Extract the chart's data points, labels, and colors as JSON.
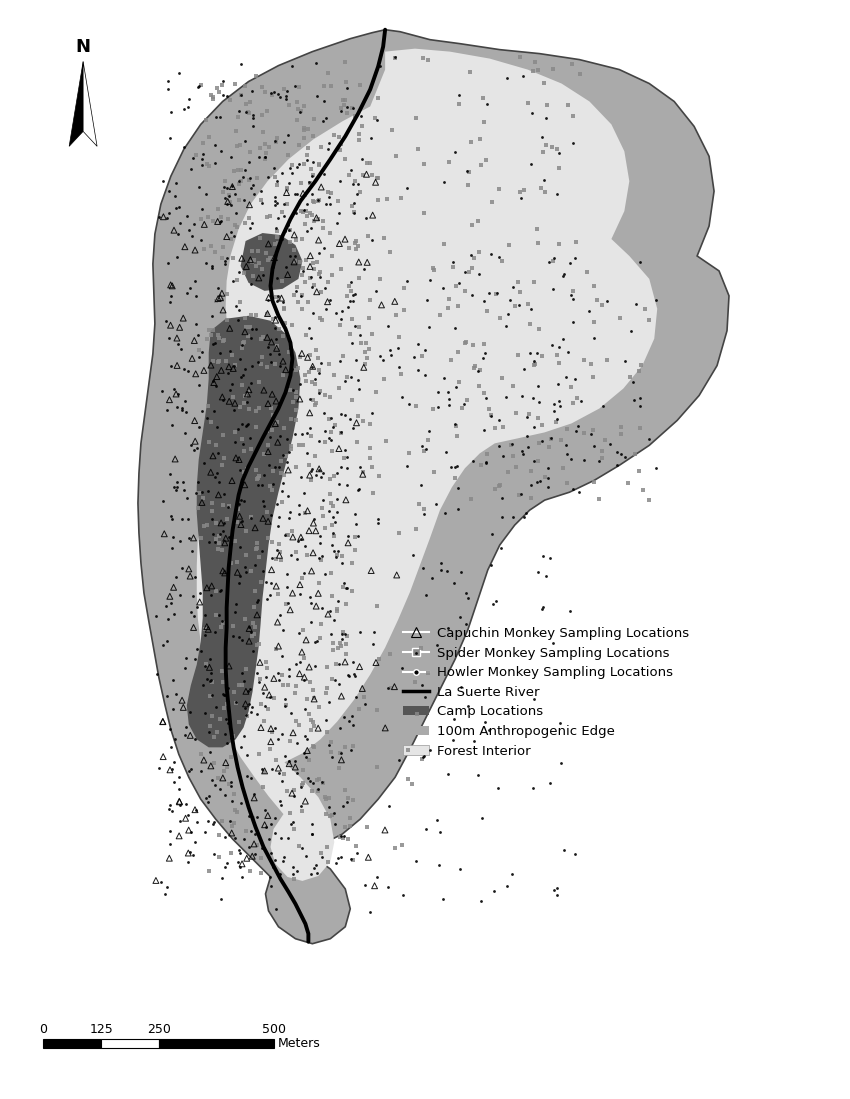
{
  "background_color": "#ffffff",
  "outer_region_color": "#aaaaaa",
  "forest_interior_color": "#e5e5e5",
  "camp_color": "#555555",
  "river_color": "#000000",
  "river_linewidth": 2.8,
  "spider_color": "#888888",
  "legend_labels": [
    "Capuchin Monkey Sampling Locations",
    "Spider Monkey Sampling Locations",
    "Howler Monkey Sampling Locations",
    "La Suerte River",
    "Camp Locations",
    "100m Anthropogenic Edge",
    "Forest Interior"
  ],
  "scale_bar_label": "Meters",
  "north_label": "N"
}
